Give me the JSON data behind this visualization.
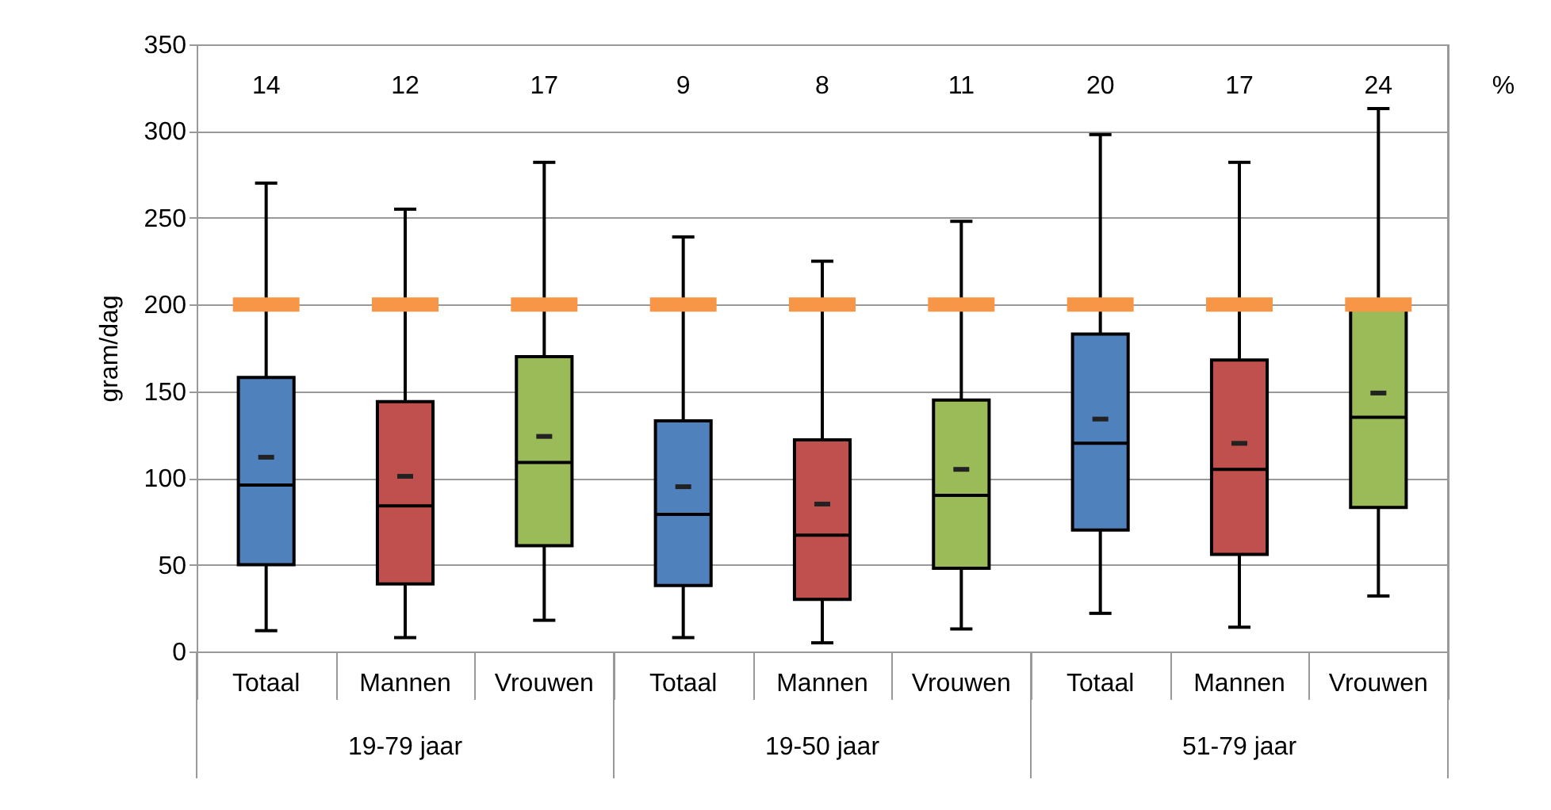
{
  "chart_data": {
    "type": "box",
    "ylabel": "gram/dag",
    "y2label": "%",
    "categories": [
      "Totaal",
      "Mannen",
      "Vrouwen",
      "Totaal",
      "Mannen",
      "Vrouwen",
      "Totaal",
      "Mannen",
      "Vrouwen"
    ],
    "colors": [
      "#4f81bd",
      "#c0504d",
      "#9bbb59",
      "#4f81bd",
      "#c0504d",
      "#9bbb59",
      "#4f81bd",
      "#c0504d",
      "#9bbb59"
    ],
    "boxes": [
      {
        "low": 12,
        "q1": 50,
        "median": 96,
        "q3": 158,
        "high": 270,
        "mean": 112
      },
      {
        "low": 8,
        "q1": 39,
        "median": 84,
        "q3": 144,
        "high": 255,
        "mean": 101
      },
      {
        "low": 18,
        "q1": 61,
        "median": 109,
        "q3": 170,
        "high": 282,
        "mean": 124
      },
      {
        "low": 8,
        "q1": 38,
        "median": 79,
        "q3": 133,
        "high": 239,
        "mean": 95
      },
      {
        "low": 5,
        "q1": 30,
        "median": 67,
        "q3": 122,
        "high": 225,
        "mean": 85
      },
      {
        "low": 13,
        "q1": 48,
        "median": 90,
        "q3": 145,
        "high": 248,
        "mean": 105
      },
      {
        "low": 22,
        "q1": 70,
        "median": 120,
        "q3": 183,
        "high": 298,
        "mean": 134
      },
      {
        "low": 14,
        "q1": 56,
        "median": 105,
        "q3": 168,
        "high": 282,
        "mean": 120
      },
      {
        "low": 32,
        "q1": 83,
        "median": 135,
        "q3": 200,
        "high": 313,
        "mean": 149
      }
    ],
    "annotations": [
      "14",
      "12",
      "17",
      "9",
      "8",
      "11",
      "20",
      "17",
      "24",
      "19-79 jaar",
      "19-50 jaar",
      "51-79 jaar"
    ],
    "ref_lines": [
      {
        "axis": "y",
        "value": 200,
        "color": "#f79646",
        "line_style": "dashed"
      }
    ],
    "ylim": [
      0,
      350
    ],
    "yticks": [
      0,
      50,
      100,
      150,
      200,
      250,
      300,
      350
    ],
    "grid": "y"
  }
}
